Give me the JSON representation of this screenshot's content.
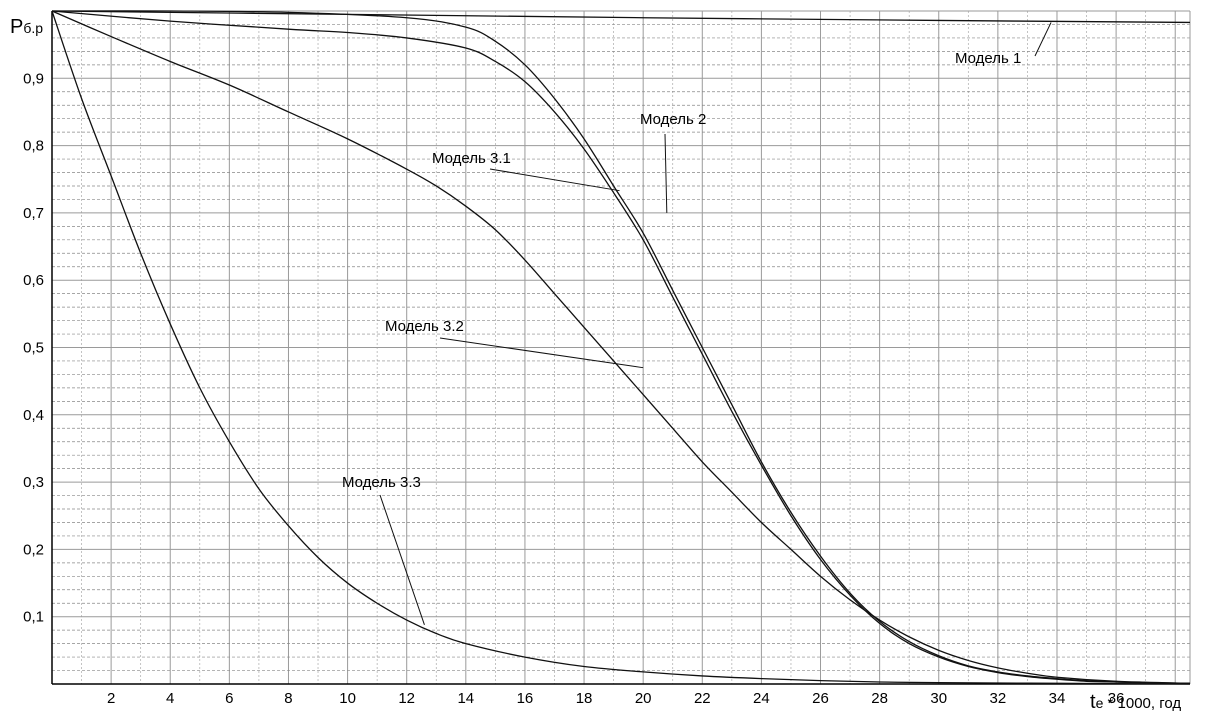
{
  "chart_data": {
    "type": "line",
    "ylabel": {
      "main": "P",
      "sub": "б.р"
    },
    "xlabel": {
      "main": "t",
      "sub": "e",
      "rest": " * 1000, год"
    },
    "xlim": [
      0,
      38.5
    ],
    "ylim": [
      0,
      1.0
    ],
    "x_ticks": [
      "2",
      "4",
      "6",
      "8",
      "10",
      "12",
      "14",
      "16",
      "18",
      "20",
      "22",
      "24",
      "26",
      "28",
      "30",
      "32",
      "34",
      "36"
    ],
    "y_ticks": [
      "0,1",
      "0,2",
      "0,3",
      "0,4",
      "0,5",
      "0,6",
      "0,7",
      "0,8",
      "0,9"
    ],
    "grid": true,
    "series": [
      {
        "name": "Модель 1",
        "x": [
          0,
          10,
          20,
          30,
          38.5
        ],
        "y": [
          1.0,
          0.995,
          0.99,
          0.986,
          0.983
        ]
      },
      {
        "name": "Модель 2",
        "x": [
          0,
          4,
          8,
          12,
          14,
          15,
          16,
          17,
          18,
          19,
          20,
          21,
          22,
          23,
          24,
          25,
          26,
          27,
          28,
          29,
          30,
          31,
          32,
          33,
          34,
          35,
          36,
          37,
          38.5
        ],
        "y": [
          1.0,
          1.0,
          0.998,
          0.99,
          0.976,
          0.955,
          0.92,
          0.87,
          0.81,
          0.74,
          0.67,
          0.585,
          0.5,
          0.415,
          0.33,
          0.255,
          0.19,
          0.135,
          0.093,
          0.063,
          0.042,
          0.027,
          0.018,
          0.012,
          0.008,
          0.005,
          0.003,
          0.002,
          0.001
        ]
      },
      {
        "name": "Модель 3.1",
        "x": [
          0,
          4,
          8,
          10,
          12,
          14,
          15,
          16,
          17,
          18,
          19,
          20,
          21,
          22,
          23,
          24,
          25,
          26,
          27,
          28,
          29,
          30,
          31,
          32,
          33,
          34,
          35,
          36,
          37,
          38.5
        ],
        "y": [
          1.0,
          0.985,
          0.973,
          0.968,
          0.96,
          0.945,
          0.925,
          0.895,
          0.85,
          0.795,
          0.73,
          0.66,
          0.575,
          0.49,
          0.405,
          0.325,
          0.25,
          0.185,
          0.132,
          0.09,
          0.06,
          0.04,
          0.026,
          0.017,
          0.011,
          0.007,
          0.004,
          0.003,
          0.002,
          0.001
        ]
      },
      {
        "name": "Модель 3.2",
        "x": [
          0,
          2,
          4,
          6,
          8,
          10,
          12,
          13,
          14,
          15,
          16,
          17,
          18,
          19,
          20,
          21,
          22,
          23,
          24,
          25,
          26,
          27,
          28,
          29,
          30,
          31,
          32,
          33,
          34,
          36,
          38.5
        ],
        "y": [
          1.0,
          0.962,
          0.925,
          0.89,
          0.85,
          0.81,
          0.765,
          0.74,
          0.71,
          0.675,
          0.63,
          0.58,
          0.53,
          0.48,
          0.43,
          0.38,
          0.33,
          0.285,
          0.24,
          0.2,
          0.16,
          0.125,
          0.095,
          0.07,
          0.05,
          0.035,
          0.024,
          0.016,
          0.01,
          0.004,
          0.001
        ]
      },
      {
        "name": "Модель 3.3",
        "x": [
          0,
          1,
          2,
          3,
          4,
          5,
          6,
          7,
          8,
          9,
          10,
          11,
          12,
          13,
          14,
          16,
          18,
          20,
          22,
          24,
          26,
          28,
          30,
          34,
          38.5
        ],
        "y": [
          1.0,
          0.87,
          0.755,
          0.64,
          0.535,
          0.44,
          0.36,
          0.29,
          0.235,
          0.188,
          0.15,
          0.12,
          0.095,
          0.075,
          0.06,
          0.04,
          0.026,
          0.018,
          0.012,
          0.008,
          0.005,
          0.003,
          0.002,
          0.001,
          0.0
        ]
      }
    ],
    "annotations": [
      {
        "text": "Модель 1",
        "series": "Модель 1",
        "x": 33.8,
        "y": 0.983
      },
      {
        "text": "Модель 2",
        "series": "Модель 2",
        "x": 20.8,
        "y": 0.7
      },
      {
        "text": "Модель 3.1",
        "series": "Модель 3.1",
        "x": 19.2,
        "y": 0.733
      },
      {
        "text": "Модель 3.2",
        "series": "Модель 3.2",
        "x": 20.0,
        "y": 0.47
      },
      {
        "text": "Модель 3.3",
        "series": "Модель 3.3",
        "x": 12.6,
        "y": 0.088
      }
    ]
  }
}
